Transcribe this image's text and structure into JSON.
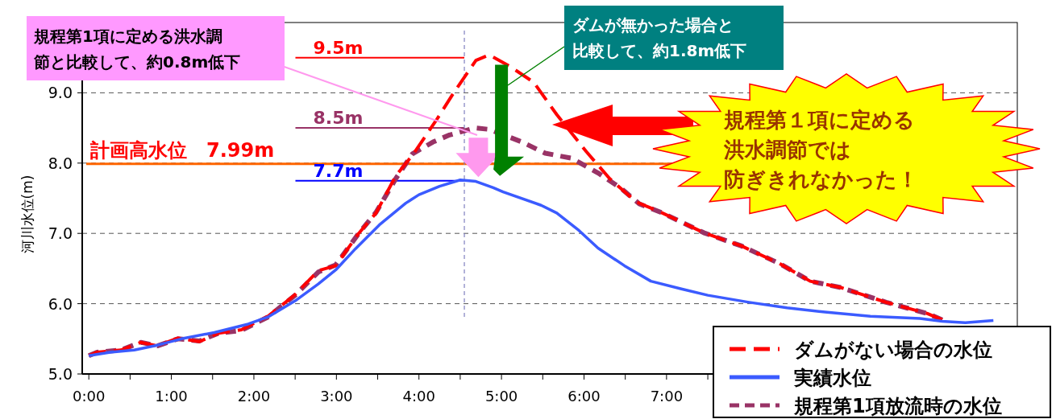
{
  "chart_data": {
    "type": "line",
    "ylabel": "河川水位(m)",
    "xlim": [
      -0.08,
      11.25
    ],
    "ylim": [
      5,
      10
    ],
    "xticks": [
      {
        "value": 0,
        "label": "0:00"
      },
      {
        "value": 0.5,
        "label": null
      },
      {
        "value": 1,
        "label": "1:00"
      },
      {
        "value": 1.5,
        "label": null
      },
      {
        "value": 2,
        "label": "2:00"
      },
      {
        "value": 2.5,
        "label": null
      },
      {
        "value": 3,
        "label": "3:00"
      },
      {
        "value": 3.5,
        "label": null
      },
      {
        "value": 4,
        "label": "4:00"
      },
      {
        "value": 4.5,
        "label": null
      },
      {
        "value": 5,
        "label": "5:00"
      },
      {
        "value": 5.5,
        "label": null
      },
      {
        "value": 6,
        "label": "6:00"
      },
      {
        "value": 6.5,
        "label": null
      },
      {
        "value": 7,
        "label": "7:00"
      },
      {
        "value": 7.5,
        "label": null
      }
    ],
    "yticks": [
      {
        "value": 5,
        "label": "5.0"
      },
      {
        "value": 6,
        "label": "6.0"
      },
      {
        "value": 7,
        "label": "7.0"
      },
      {
        "value": 8,
        "label": "8.0"
      },
      {
        "value": 9,
        "label": "9.0"
      }
    ],
    "grid": "y",
    "legend": "bottom right",
    "series": [
      {
        "name": "ダムがない場合の水位",
        "color": "#ff0000",
        "line_style": "dashed",
        "x": [
          0,
          0.1,
          0.39,
          0.63,
          0.83,
          1.08,
          1.34,
          1.57,
          1.85,
          2.17,
          2.5,
          2.78,
          2.99,
          3.27,
          3.48,
          3.72,
          3.92,
          4.21,
          4.41,
          4.69,
          4.85,
          5.11,
          5.39,
          5.67,
          6.03,
          6.31,
          6.63,
          6.95,
          7.45,
          7.91,
          8.37,
          8.74,
          9.11,
          9.66,
          10.16,
          10.34
        ],
        "values": [
          5.26,
          5.31,
          5.34,
          5.45,
          5.4,
          5.51,
          5.46,
          5.58,
          5.63,
          5.82,
          6.13,
          6.47,
          6.54,
          7.0,
          7.29,
          7.82,
          8.11,
          8.61,
          8.98,
          9.46,
          9.54,
          9.37,
          9.15,
          8.69,
          8.16,
          7.78,
          7.45,
          7.29,
          7.01,
          6.82,
          6.57,
          6.32,
          6.23,
          6.02,
          5.86,
          5.77
        ]
      },
      {
        "name": "実績水位",
        "color": "#3b5bff",
        "line_style": "solid",
        "x": [
          0,
          0.26,
          0.55,
          0.83,
          1.16,
          1.52,
          1.93,
          2.17,
          2.5,
          2.78,
          3.0,
          3.23,
          3.52,
          3.84,
          4.0,
          4.25,
          4.5,
          4.69,
          4.9,
          5.02,
          5.48,
          5.67,
          5.94,
          6.17,
          6.49,
          6.81,
          7.18,
          7.5,
          8.0,
          8.46,
          8.92,
          9.47,
          10.07,
          10.34,
          10.62,
          10.96
        ],
        "values": [
          5.26,
          5.31,
          5.34,
          5.41,
          5.51,
          5.59,
          5.71,
          5.81,
          6.04,
          6.28,
          6.49,
          6.78,
          7.12,
          7.43,
          7.55,
          7.67,
          7.76,
          7.74,
          7.65,
          7.59,
          7.4,
          7.29,
          7.04,
          6.79,
          6.54,
          6.32,
          6.21,
          6.12,
          6.02,
          5.94,
          5.88,
          5.82,
          5.79,
          5.75,
          5.73,
          5.76
        ]
      },
      {
        "name": "規程第1項放流時の水位",
        "color": "#993366",
        "line_style": "dashed",
        "x": [
          0,
          0.1,
          0.39,
          0.63,
          0.83,
          1.08,
          1.34,
          1.57,
          1.85,
          2.17,
          2.5,
          2.78,
          2.99,
          3.27,
          3.48,
          3.72,
          3.92,
          4.17,
          4.37,
          4.68,
          4.85,
          5.25,
          5.53,
          5.85,
          6.17,
          6.45,
          6.67,
          6.95,
          7.45,
          7.91,
          8.37,
          8.74,
          9.11,
          9.66,
          10.16,
          10.34
        ],
        "values": [
          5.26,
          5.31,
          5.34,
          5.45,
          5.4,
          5.5,
          5.47,
          5.58,
          5.62,
          5.81,
          6.12,
          6.45,
          6.55,
          7.0,
          7.3,
          7.78,
          8.13,
          8.3,
          8.4,
          8.5,
          8.48,
          8.3,
          8.14,
          8.07,
          7.86,
          7.64,
          7.42,
          7.29,
          7.01,
          6.82,
          6.57,
          6.32,
          6.23,
          6.02,
          5.86,
          5.77
        ]
      }
    ],
    "ref_lines": [
      {
        "axis": "y",
        "value": 7.99,
        "label": "計画高水位　7.99m",
        "color": "#ff6600"
      },
      {
        "axis": "y",
        "value": 9.5,
        "label": "9.5m",
        "color": "#ff0000"
      },
      {
        "axis": "y",
        "value": 8.5,
        "label": "8.5m",
        "color": "#993366"
      },
      {
        "axis": "y",
        "value": 7.75,
        "label": "7.7m",
        "color": "#0000ff"
      },
      {
        "axis": "x",
        "value": 4.55,
        "color": "#8080c0",
        "line_style": "dashed"
      }
    ],
    "annotations": [
      "規程第1項に定める洪水調節と比較して、約0.8m低下",
      "ダムが無かった場合と比較して、約1.8m低下",
      "規程第１項に定める洪水調節では防ぎきれなかった！"
    ]
  }
}
